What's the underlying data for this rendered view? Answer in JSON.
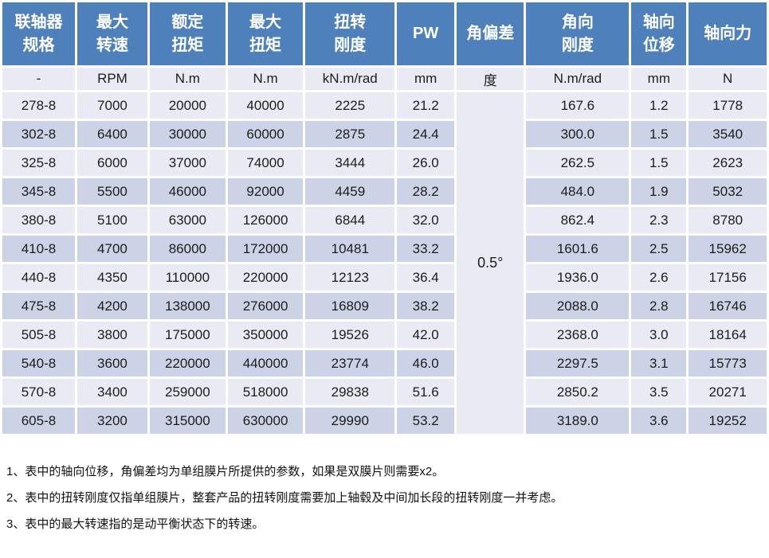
{
  "table": {
    "columns": [
      {
        "label": "联轴器\n规格",
        "unit": "-"
      },
      {
        "label": "最大\n转速",
        "unit": "RPM"
      },
      {
        "label": "额定\n扭矩",
        "unit": "N.m"
      },
      {
        "label": "最大\n扭矩",
        "unit": "N.m"
      },
      {
        "label": "扭转\n刚度",
        "unit": "kN.m/rad"
      },
      {
        "label": "PW",
        "unit": "mm"
      },
      {
        "label": "角偏差",
        "unit": "度"
      },
      {
        "label": "角向\n刚度",
        "unit": "N.m/rad"
      },
      {
        "label": "轴向\n位移",
        "unit": "mm"
      },
      {
        "label": "轴向力",
        "unit": "N"
      }
    ],
    "angular_deviation_value": "0.5°",
    "rows": [
      [
        "278-8",
        "7000",
        "20000",
        "40000",
        "2225",
        "21.2",
        "167.6",
        "1.2",
        "1778"
      ],
      [
        "302-8",
        "6400",
        "30000",
        "60000",
        "2875",
        "24.4",
        "300.0",
        "1.5",
        "3540"
      ],
      [
        "325-8",
        "6000",
        "37000",
        "74000",
        "3444",
        "26.0",
        "262.5",
        "1.5",
        "2623"
      ],
      [
        "345-8",
        "5500",
        "46000",
        "92000",
        "4459",
        "28.2",
        "484.0",
        "1.9",
        "5032"
      ],
      [
        "380-8",
        "5100",
        "63000",
        "126000",
        "6844",
        "32.0",
        "862.4",
        "2.3",
        "8780"
      ],
      [
        "410-8",
        "4700",
        "86000",
        "172000",
        "10481",
        "33.2",
        "1601.6",
        "2.5",
        "15962"
      ],
      [
        "440-8",
        "4350",
        "110000",
        "220000",
        "12123",
        "36.4",
        "1936.0",
        "2.6",
        "17156"
      ],
      [
        "475-8",
        "4200",
        "138000",
        "276000",
        "16809",
        "38.2",
        "2088.0",
        "2.8",
        "16746"
      ],
      [
        "505-8",
        "3800",
        "175000",
        "350000",
        "19526",
        "42.0",
        "2368.0",
        "3.0",
        "18164"
      ],
      [
        "540-8",
        "3600",
        "220000",
        "440000",
        "23774",
        "46.0",
        "2297.5",
        "3.1",
        "15773"
      ],
      [
        "570-8",
        "3400",
        "259000",
        "518000",
        "29838",
        "51.6",
        "2850.2",
        "3.5",
        "20271"
      ],
      [
        "605-8",
        "3200",
        "315000",
        "630000",
        "29990",
        "53.2",
        "3189.0",
        "3.6",
        "19252"
      ]
    ]
  },
  "notes": [
    "1、表中的轴向位移，角偏差均为单组膜片所提供的参数，如果是双膜片则需要x2。",
    "2、表中的扭转刚度仅指单组膜片，整套产品的扭转刚度需要加上轴毂及中间加长段的扭转刚度一并考虑。",
    "3、表中的最大转速指的是动平衡状态下的转速。"
  ],
  "colors": {
    "header_blue": "#4e80bc",
    "band_light": "#e9eaf4",
    "band_dark": "#ccd3e6",
    "cell_border": "#ffffff",
    "text": "#1c1c1c"
  }
}
